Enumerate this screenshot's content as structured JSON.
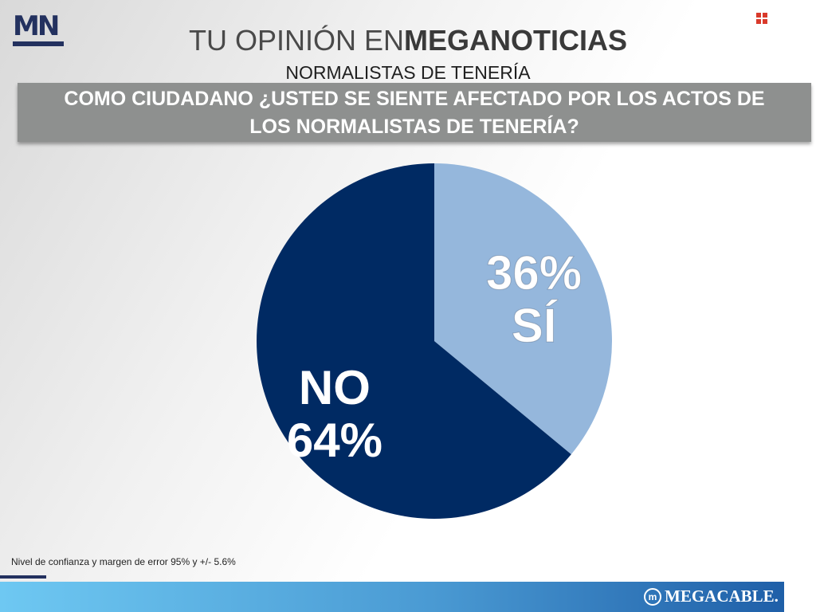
{
  "logo": {
    "text": "MN"
  },
  "header": {
    "title_light": "TU OPINIÓN EN",
    "title_bold": "MEGANOTICIAS",
    "subtitle": "NORMALISTAS DE TENERÍA"
  },
  "question": {
    "line1": "COMO CIUDADANO ¿USTED SE SIENTE AFECTADO POR LOS ACTOS DE",
    "line2": "LOS NORMALISTAS DE TENERÍA?"
  },
  "colors": {
    "si": "#95b7dc",
    "no": "#002a63",
    "corner_icon": "#d93a2b"
  },
  "icons": {
    "corner": "grid-icon",
    "brand": "megacable-logo-icon"
  },
  "chart_data": {
    "type": "pie",
    "title": "COMO CIUDADANO ¿USTED SE SIENTE AFECTADO POR LOS ACTOS DE LOS NORMALISTAS DE TENERÍA?",
    "slices": [
      {
        "label": "SÍ",
        "value": 36,
        "display": "36%"
      },
      {
        "label": "NO",
        "value": 64,
        "display": "64%"
      }
    ]
  },
  "footnote": "Nivel de confianza y margen de error 95% y +/- 5.6%",
  "footer": {
    "brand": "MEGACABLE."
  }
}
